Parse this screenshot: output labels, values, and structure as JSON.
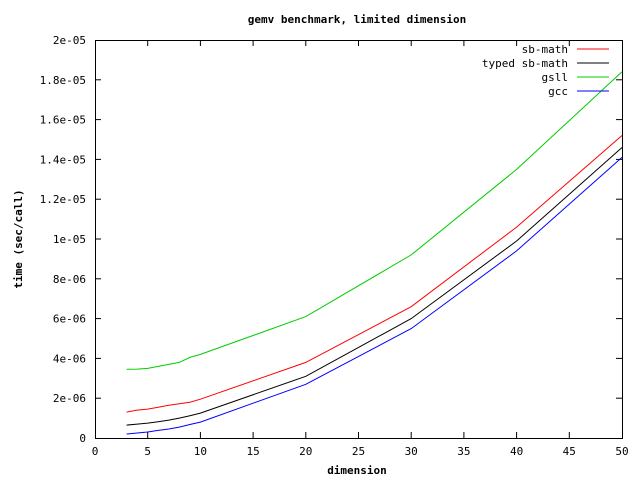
{
  "chart_data": {
    "type": "line",
    "title": "gemv benchmark, limited dimension",
    "xlabel": "dimension",
    "ylabel": "time (sec/call)",
    "xlim": [
      0,
      50
    ],
    "ylim": [
      0,
      2e-05
    ],
    "x_ticks": [
      0,
      5,
      10,
      15,
      20,
      25,
      30,
      35,
      40,
      45,
      50
    ],
    "x_tick_labels": [
      "0",
      "5",
      "10",
      "15",
      "20",
      "25",
      "30",
      "35",
      "40",
      "45",
      "50"
    ],
    "y_ticks": [
      0,
      2e-06,
      4e-06,
      6e-06,
      8e-06,
      1e-05,
      1.2e-05,
      1.4e-05,
      1.6e-05,
      1.8e-05,
      2e-05
    ],
    "y_tick_labels": [
      "0",
      "2e-06",
      "4e-06",
      "6e-06",
      "8e-06",
      "1e-05",
      "1.2e-05",
      "1.4e-05",
      "1.6e-05",
      "1.8e-05",
      "2e-05"
    ],
    "grid": false,
    "legend_position": "top-right",
    "x": [
      3,
      4,
      5,
      6,
      7,
      8,
      9,
      10,
      20,
      30,
      40,
      50
    ],
    "series": [
      {
        "name": "sb-math",
        "color": "#ff0000",
        "values": [
          1.3e-06,
          1.4e-06,
          1.45e-06,
          1.55e-06,
          1.65e-06,
          1.72e-06,
          1.8e-06,
          1.95e-06,
          3.8e-06,
          6.6e-06,
          1.06e-05,
          1.52e-05
        ]
      },
      {
        "name": "typed sb-math",
        "color": "#000000",
        "values": [
          6.5e-07,
          7e-07,
          7.5e-07,
          8.2e-07,
          9e-07,
          1e-06,
          1.12e-06,
          1.25e-06,
          3.1e-06,
          6e-06,
          9.9e-06,
          1.46e-05
        ]
      },
      {
        "name": "gsll",
        "color": "#00cc00",
        "values": [
          3.45e-06,
          3.46e-06,
          3.5e-06,
          3.6e-06,
          3.7e-06,
          3.8e-06,
          4.05e-06,
          4.2e-06,
          6.1e-06,
          9.2e-06,
          1.35e-05,
          1.84e-05
        ]
      },
      {
        "name": "gcc",
        "color": "#0000ff",
        "values": [
          2e-07,
          2.5e-07,
          3e-07,
          3.8e-07,
          4.5e-07,
          5.5e-07,
          6.8e-07,
          8e-07,
          2.7e-06,
          5.5e-06,
          9.4e-06,
          1.41e-05
        ]
      }
    ]
  }
}
